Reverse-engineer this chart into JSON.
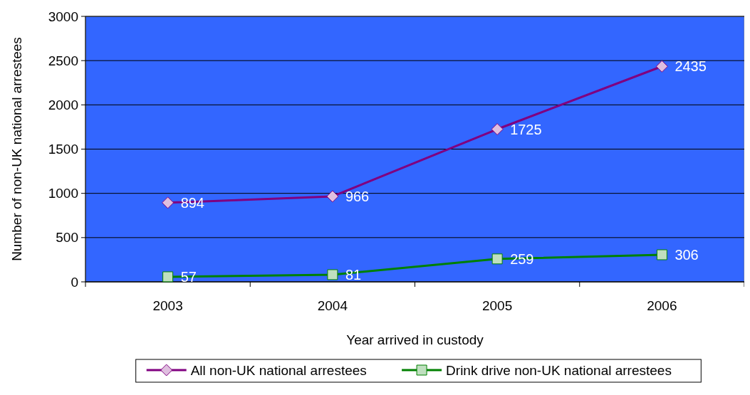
{
  "chart_data": {
    "type": "line",
    "xlabel": "Year arrived in custody",
    "ylabel": "Number of non-UK national arrestees",
    "categories": [
      "2003",
      "2004",
      "2005",
      "2006"
    ],
    "series": [
      {
        "name": "All non-UK national arrestees",
        "color": "#800080",
        "marker": "diamond",
        "values": [
          894,
          966,
          1725,
          2435
        ]
      },
      {
        "name": "Drink drive non-UK national arrestees",
        "color": "#008000",
        "marker": "square",
        "values": [
          57,
          81,
          259,
          306
        ]
      }
    ],
    "ylim": [
      0,
      3000
    ],
    "yticks": [
      0,
      500,
      1000,
      1500,
      2000,
      2500,
      3000
    ],
    "grid": "y",
    "legend": "bottom",
    "data_labels": true,
    "line_style": "solid"
  }
}
